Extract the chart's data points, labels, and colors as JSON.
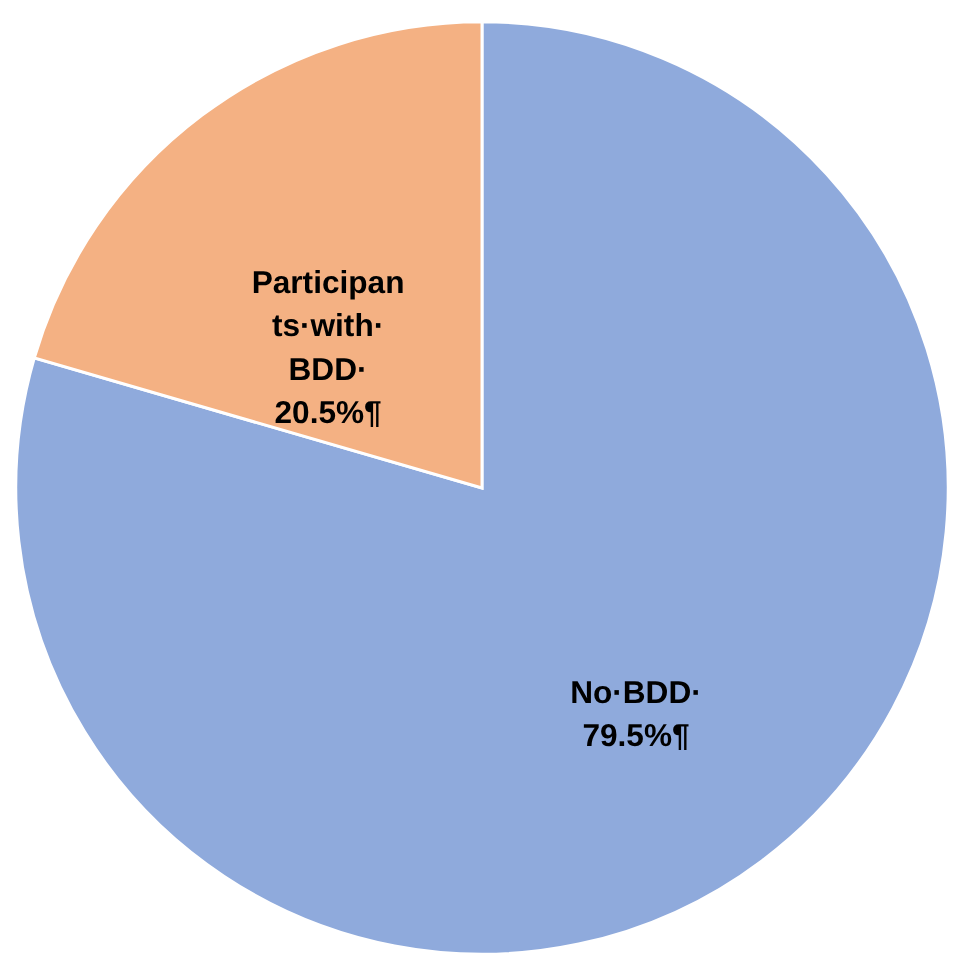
{
  "chart_data": {
    "type": "pie",
    "categories": [
      "No·BDD·",
      "Participants·with·BDD·"
    ],
    "values": [
      79.5,
      20.5
    ],
    "colors": [
      "#8faadc",
      "#f4b183"
    ],
    "value_labels": [
      "79.5%¶",
      "20.5%¶"
    ]
  }
}
